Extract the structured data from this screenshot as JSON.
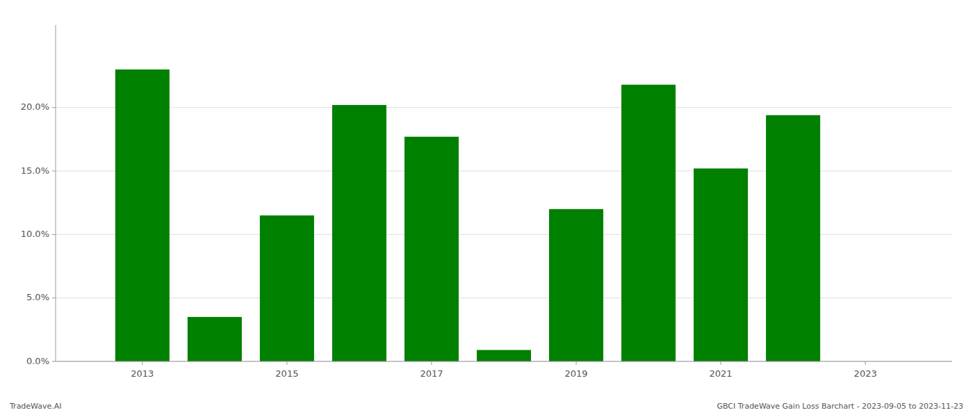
{
  "chart_data": {
    "type": "bar",
    "x": [
      2013,
      2014,
      2015,
      2016,
      2017,
      2018,
      2019,
      2020,
      2021,
      2022
    ],
    "values": [
      0.23,
      0.035,
      0.115,
      0.202,
      0.177,
      0.009,
      0.12,
      0.218,
      0.152,
      0.194
    ],
    "color": "#008000",
    "xlim": [
      2011.8,
      2024.2
    ],
    "xticks": [
      2013,
      2015,
      2017,
      2019,
      2021,
      2023
    ],
    "ylim": [
      0,
      0.265
    ],
    "yticks": [
      {
        "value": 0.0,
        "label": "0.0%"
      },
      {
        "value": 0.05,
        "label": "5.0%"
      },
      {
        "value": 0.1,
        "label": "10.0%"
      },
      {
        "value": 0.15,
        "label": "15.0%"
      },
      {
        "value": 0.2,
        "label": "20.0%"
      }
    ],
    "grid": true,
    "annotations": [
      "TradeWave.AI",
      "GBCI TradeWave Gain Loss Barchart - 2023-09-05 to 2023-11-23"
    ]
  }
}
